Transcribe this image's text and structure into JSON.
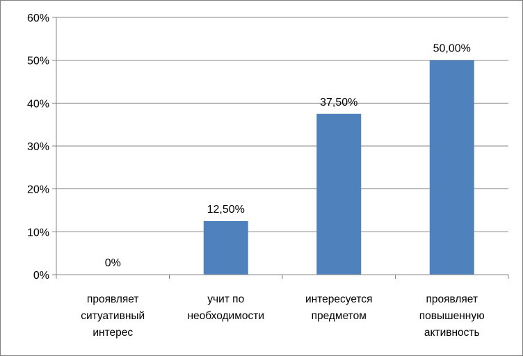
{
  "chart_data": {
    "type": "bar",
    "categories": [
      [
        "проявляет",
        "ситуативный",
        "интерес"
      ],
      [
        "учит по",
        "необходимости"
      ],
      [
        "интересуется",
        "предметом"
      ],
      [
        "проявляет",
        "повышенную",
        "активность"
      ]
    ],
    "values": [
      0,
      12.5,
      37.5,
      50.0
    ],
    "data_labels": [
      "0%",
      "12,50%",
      "37,50%",
      "50,00%"
    ],
    "y_ticks": [
      "0%",
      "10%",
      "20%",
      "30%",
      "40%",
      "50%",
      "60%"
    ],
    "ylim": [
      0,
      60
    ],
    "grid": true,
    "legend": "none",
    "bar_color": "#4f81bd",
    "grid_color": "#868686",
    "title": "",
    "xlabel": "",
    "ylabel": ""
  }
}
